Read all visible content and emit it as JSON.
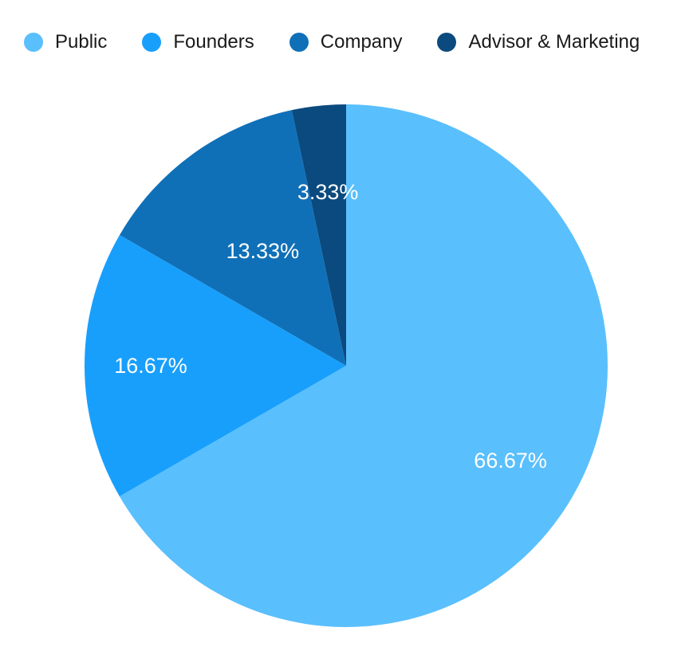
{
  "chart_data": {
    "type": "pie",
    "categories": [
      "Public",
      "Founders",
      "Company",
      "Advisor & Marketing"
    ],
    "values": [
      66.67,
      16.67,
      13.33,
      3.33
    ],
    "data_labels": [
      "66.67%",
      "16.67%",
      "13.33%",
      "3.33%"
    ],
    "colors": [
      "#5ABFFD",
      "#189FFC",
      "#0F70B8",
      "#0B4A7E"
    ],
    "legend": {
      "position": "top-left",
      "entries": [
        "Public",
        "Founders",
        "Company",
        "Advisor & Marketing"
      ]
    },
    "start_angle": "12 o'clock",
    "direction": "clockwise"
  }
}
